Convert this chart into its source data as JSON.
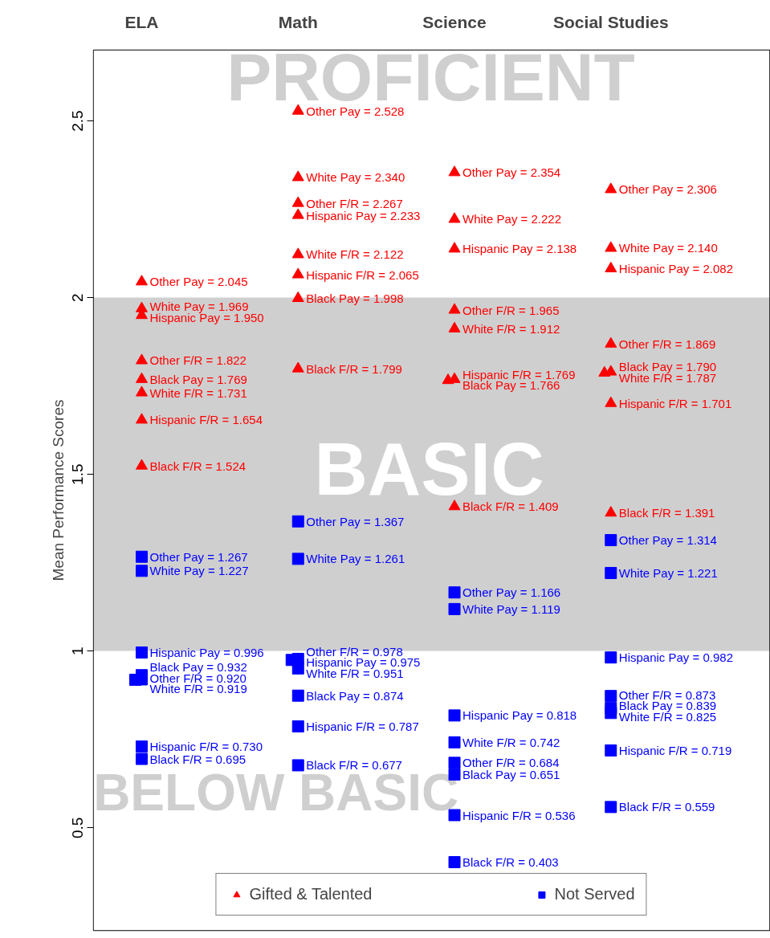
{
  "chart_data": {
    "type": "scatter",
    "ylabel": "Mean Performance Scores",
    "categories": [
      "ELA",
      "Math",
      "Science",
      "Social Studies"
    ],
    "ylim": [
      0.21,
      2.7
    ],
    "yticks": [
      0.5,
      1,
      1.5,
      2,
      2.5
    ],
    "grid": false,
    "legend": "bottom",
    "tick_labels": "y",
    "series": [
      {
        "name": "Gifted & Talented",
        "color": "#ff0000",
        "marker": "triangle",
        "x": [
          "ELA",
          "ELA",
          "ELA",
          "ELA",
          "ELA",
          "ELA",
          "ELA",
          "ELA",
          "Math",
          "Math",
          "Math",
          "Math",
          "Math",
          "Math",
          "Math",
          "Math",
          "Science",
          "Science",
          "Science",
          "Science",
          "Science",
          "Science",
          "Science",
          "Science",
          "Social Studies",
          "Social Studies",
          "Social Studies",
          "Social Studies",
          "Social Studies",
          "Social Studies",
          "Social Studies",
          "Social Studies"
        ],
        "values": [
          2.045,
          1.969,
          1.95,
          1.822,
          1.769,
          1.731,
          1.654,
          1.524,
          2.528,
          2.34,
          2.267,
          2.233,
          2.122,
          2.065,
          1.998,
          1.799,
          2.354,
          2.222,
          2.138,
          1.965,
          1.912,
          1.769,
          1.766,
          1.409,
          2.306,
          2.14,
          2.082,
          1.869,
          1.79,
          1.787,
          1.701,
          1.391
        ],
        "value_labels": [
          "Other Pay = 2.045",
          "White Pay = 1.969",
          "Hispanic Pay = 1.950",
          "Other F/R = 1.822",
          "Black Pay = 1.769",
          "White F/R = 1.731",
          "Hispanic F/R = 1.654",
          "Black F/R = 1.524",
          "Other Pay = 2.528",
          "White Pay = 2.340",
          "Other F/R = 2.267",
          "Hispanic Pay = 2.233",
          "White F/R = 2.122",
          "Hispanic F/R = 2.065",
          "Black Pay = 1.998",
          "Black F/R = 1.799",
          "Other Pay = 2.354",
          "White Pay = 2.222",
          "Hispanic Pay = 2.138",
          "Other F/R = 1.965",
          "White F/R = 1.912",
          "Hispanic F/R = 1.769",
          "Black Pay = 1.766",
          "Black F/R = 1.409",
          "Other Pay = 2.306",
          "White Pay = 2.140",
          "Hispanic Pay = 2.082",
          "Other F/R = 1.869",
          "Black Pay = 1.790",
          "White F/R = 1.787",
          "Hispanic F/R = 1.701",
          "Black F/R = 1.391"
        ]
      },
      {
        "name": "Not Served",
        "color": "#0000ff",
        "marker": "square",
        "x": [
          "ELA",
          "ELA",
          "ELA",
          "ELA",
          "ELA",
          "ELA",
          "ELA",
          "ELA",
          "Math",
          "Math",
          "Math",
          "Math",
          "Math",
          "Math",
          "Math",
          "Math",
          "Science",
          "Science",
          "Science",
          "Science",
          "Science",
          "Science",
          "Science",
          "Science",
          "Social Studies",
          "Social Studies",
          "Social Studies",
          "Social Studies",
          "Social Studies",
          "Social Studies",
          "Social Studies",
          "Social Studies"
        ],
        "values": [
          1.267,
          1.227,
          0.996,
          0.932,
          0.92,
          0.919,
          0.73,
          0.695,
          1.367,
          1.261,
          0.978,
          0.975,
          0.951,
          0.874,
          0.787,
          0.677,
          1.166,
          1.119,
          0.818,
          0.742,
          0.684,
          0.651,
          0.536,
          0.403,
          1.314,
          1.221,
          0.982,
          0.873,
          0.839,
          0.825,
          0.719,
          0.559
        ],
        "value_labels": [
          "Other Pay = 1.267",
          "White Pay = 1.227",
          "Hispanic Pay = 0.996",
          "Black Pay = 0.932",
          "Other F/R = 0.920",
          "White F/R = 0.919",
          "Hispanic F/R = 0.730",
          "Black F/R = 0.695",
          "Other Pay = 1.367",
          "White Pay = 1.261",
          "Other F/R = 0.978",
          "Hispanic Pay = 0.975",
          "White F/R = 0.951",
          "Black Pay = 0.874",
          "Hispanic F/R = 0.787",
          "Black F/R = 0.677",
          "Other Pay = 1.166",
          "White Pay = 1.119",
          "Hispanic Pay = 0.818",
          "White F/R = 0.742",
          "Other F/R = 0.684",
          "Black Pay = 0.651",
          "Hispanic F/R = 0.536",
          "Black F/R = 0.403",
          "Other Pay = 1.314",
          "White Pay = 1.221",
          "Hispanic Pay = 0.982",
          "Other F/R = 0.873",
          "Black Pay = 0.839",
          "White F/R = 0.825",
          "Hispanic F/R = 0.719",
          "Black F/R = 0.559"
        ]
      }
    ],
    "bands": [
      {
        "axis": "y",
        "from": 2,
        "to": 2.7,
        "label": "PROFICIENT",
        "color": "#ffffff"
      },
      {
        "axis": "y",
        "from": 1,
        "to": 2,
        "label": "BASIC",
        "color": "#cfcfcf"
      },
      {
        "axis": "y",
        "from": 0.21,
        "to": 1,
        "label": "BELOW BASIC",
        "color": "#ffffff"
      }
    ]
  }
}
